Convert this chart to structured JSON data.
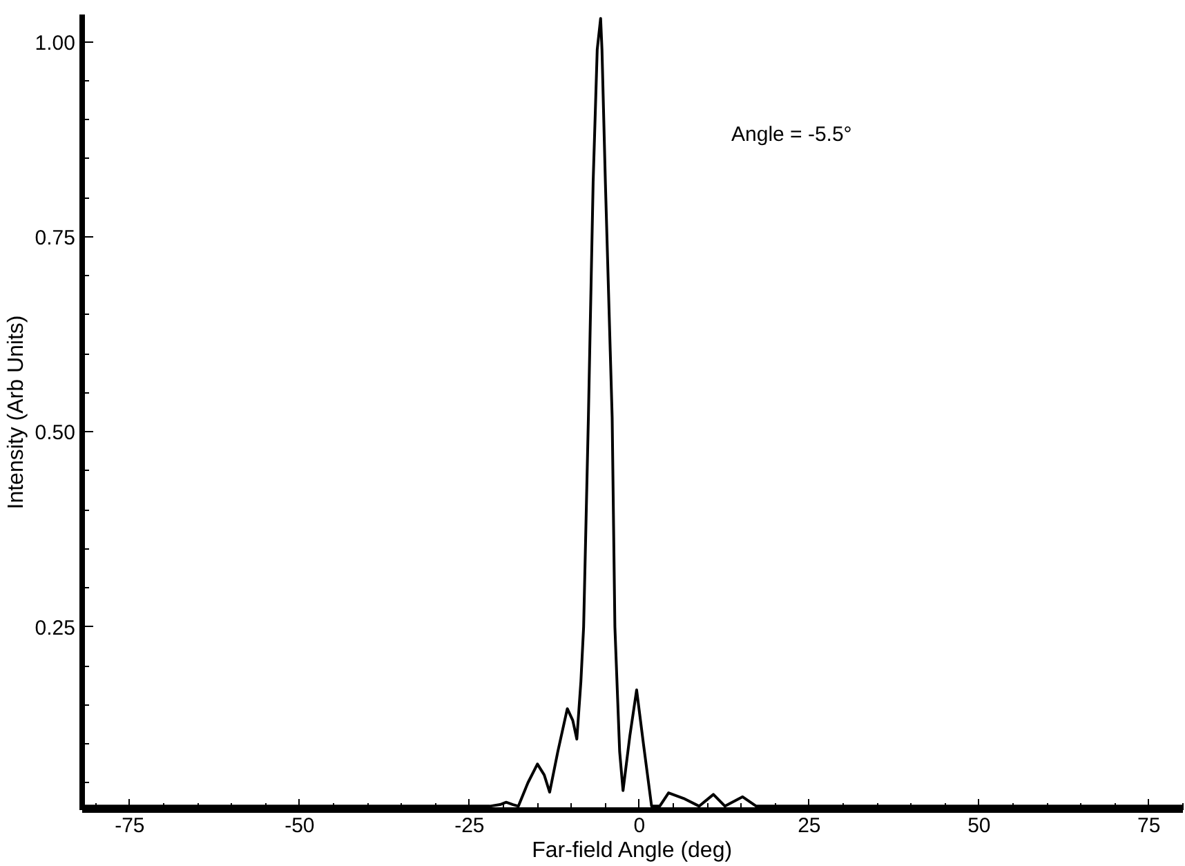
{
  "chart_data": {
    "type": "line",
    "xlabel": "Far-field Angle (deg)",
    "ylabel": "Intensity (Arb Units)",
    "annotations": [
      "Angle = -5.5°"
    ],
    "xlim": [
      -82,
      80
    ],
    "ylim": [
      0.015,
      1.035
    ],
    "xticks": [
      -75,
      -50,
      -25,
      0,
      25,
      50,
      75
    ],
    "yticks": [
      {
        "value": 0.25,
        "label": "0.25"
      },
      {
        "value": 0.5,
        "label": "0.50"
      },
      {
        "value": 0.75,
        "label": "0.75"
      },
      {
        "value": 1.0,
        "label": "1.00"
      }
    ],
    "grid": false,
    "marker": "none",
    "line_style": "solid",
    "series": [
      {
        "color": "#000000",
        "x": [
          -82,
          -40,
          -22,
          -20.5,
          -19.6,
          -18.6,
          -17.8,
          -16.4,
          -15.0,
          -14.0,
          -13.2,
          -12.0,
          -10.6,
          -9.8,
          -9.2,
          -8.6,
          -8.2,
          -7.5,
          -6.8,
          -6.2,
          -5.7,
          -5.5,
          -5.0,
          -4.0,
          -3.6,
          -2.9,
          -2.4,
          -1.4,
          -0.4,
          0.6,
          1.8,
          3.0,
          4.3,
          6.5,
          8.8,
          10.9,
          12.6,
          15.2,
          17.2,
          30,
          80
        ],
        "values": [
          0.02,
          0.02,
          0.02,
          0.022,
          0.025,
          0.022,
          0.02,
          0.05,
          0.074,
          0.06,
          0.038,
          0.09,
          0.145,
          0.13,
          0.106,
          0.18,
          0.25,
          0.518,
          0.82,
          0.99,
          1.03,
          0.99,
          0.82,
          0.518,
          0.25,
          0.09,
          0.04,
          0.11,
          0.169,
          0.1,
          0.02,
          0.02,
          0.037,
          0.03,
          0.02,
          0.035,
          0.02,
          0.032,
          0.02,
          0.02,
          0.02
        ]
      }
    ]
  }
}
